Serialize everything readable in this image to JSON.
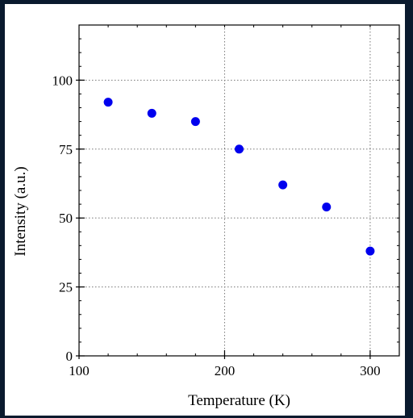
{
  "colors": {
    "outer_border": "#0a1a2e",
    "background": "#ffffff",
    "point": "#0000ee",
    "grid": "#777777",
    "axis": "#000000"
  },
  "chart_data": {
    "type": "scatter",
    "title": "",
    "xlabel": "Temperature (K)",
    "ylabel": "Intensity (a.u.)",
    "xlim": [
      100,
      320
    ],
    "ylim": [
      0,
      120
    ],
    "xticks": [
      100,
      200,
      300
    ],
    "yticks": [
      0,
      25,
      50,
      75,
      100
    ],
    "grid": true,
    "grid_style": "dotted",
    "x_minor_tick_step": 20,
    "y_minor_tick_step": 5,
    "series": [
      {
        "x": [
          120,
          150,
          180,
          210,
          240,
          270,
          300
        ],
        "y": [
          92,
          88,
          85,
          75,
          62,
          54,
          38
        ]
      }
    ]
  }
}
